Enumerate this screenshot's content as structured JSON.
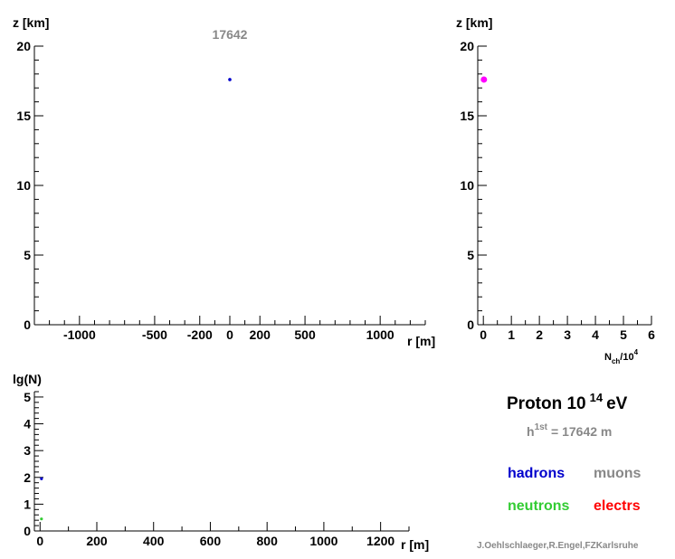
{
  "chart_data": [
    {
      "type": "scatter",
      "title": "17642",
      "xlabel": "r [m]",
      "ylabel": "z [km]",
      "xlim": [
        -1300,
        1300
      ],
      "ylim": [
        0,
        20
      ],
      "x_ticks": [
        -1000,
        -500,
        -200,
        0,
        200,
        500,
        1000
      ],
      "y_ticks": [
        0,
        5,
        10,
        15,
        20
      ],
      "points": [
        {
          "x": 0,
          "y": 17.6,
          "color": "#0000cc"
        }
      ]
    },
    {
      "type": "scatter",
      "xlabel_main": "N",
      "xlabel_sub": "ch",
      "xlabel_tail": "/10",
      "xlabel_sup": "4",
      "ylabel": "z [km]",
      "xlim": [
        -0.2,
        6
      ],
      "ylim": [
        0,
        20
      ],
      "x_ticks": [
        0,
        1,
        2,
        3,
        4,
        5,
        6
      ],
      "y_ticks": [
        0,
        5,
        10,
        15,
        20
      ],
      "points": [
        {
          "x": 0.02,
          "y": 17.6,
          "color": "#ff00ff"
        }
      ]
    },
    {
      "type": "scatter",
      "xlabel": "r [m]",
      "ylabel": "lg(N)",
      "xlim": [
        -20,
        1300
      ],
      "ylim": [
        0,
        5.2
      ],
      "x_ticks": [
        0,
        200,
        400,
        600,
        800,
        1000,
        1200
      ],
      "y_ticks": [
        0,
        1,
        2,
        3,
        4,
        5
      ],
      "points": [
        {
          "x": 5,
          "y": 1.95,
          "color": "#0000cc"
        },
        {
          "x": 5,
          "y": 0.45,
          "color": "#33cc33"
        }
      ]
    }
  ],
  "info": {
    "primary": "Proton 10",
    "energy_exp": "14",
    "energy_unit": "eV",
    "h_label": "h",
    "h_sup": "1st",
    "h_value": "= 17642 m",
    "credit": "J.Oehlschlaeger,R.Engel,FZKarlsruhe"
  },
  "legend": [
    {
      "label": "hadrons",
      "color": "#0000cc"
    },
    {
      "label": "muons",
      "color": "#888888"
    },
    {
      "label": "neutrons",
      "color": "#33cc33"
    },
    {
      "label": "electrs",
      "color": "#ff0000"
    }
  ]
}
